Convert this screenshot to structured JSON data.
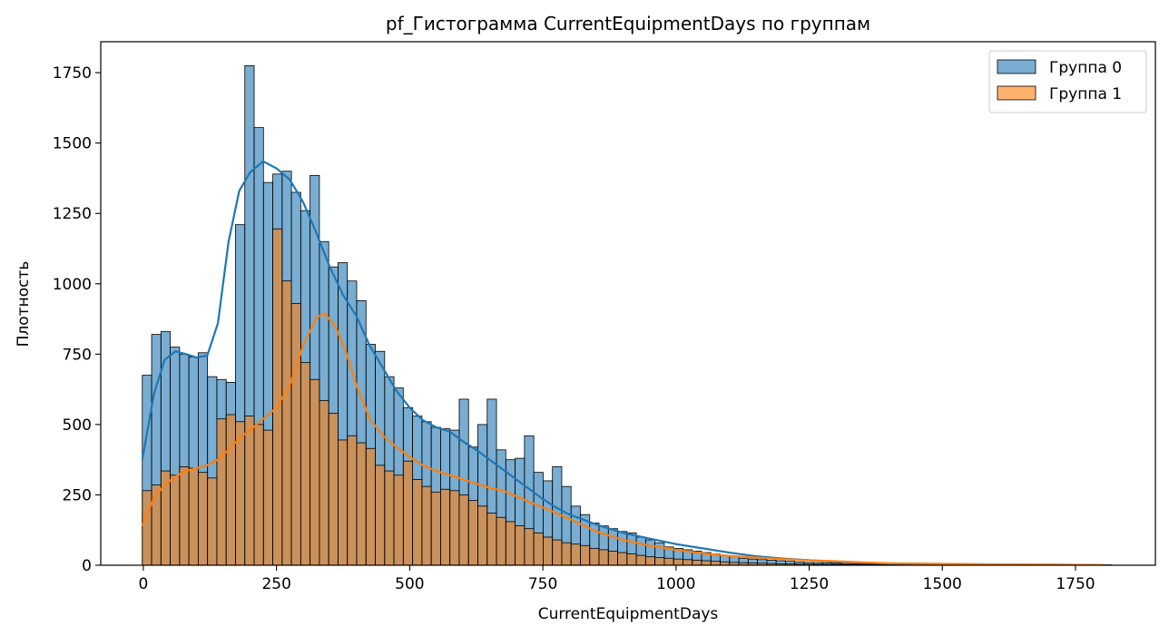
{
  "chart_data": {
    "type": "histogram",
    "title": "pf_Гистограмма CurrentEquipmentDays по группам",
    "xlabel": "CurrentEquipmentDays",
    "ylabel": "Плотность",
    "xlim": [
      -80,
      1900
    ],
    "ylim": [
      0,
      1860
    ],
    "xticks": [
      0,
      250,
      500,
      750,
      1000,
      1250,
      1500,
      1750
    ],
    "yticks": [
      0,
      250,
      500,
      750,
      1000,
      1250,
      1500,
      1750
    ],
    "bin_start": -2,
    "bin_width": 17.5,
    "legend_position": "top-right",
    "series": [
      {
        "name": "Группа 0",
        "color": "#1f77b4",
        "counts": [
          675,
          820,
          830,
          775,
          750,
          740,
          755,
          670,
          660,
          650,
          1210,
          1775,
          1555,
          1360,
          1390,
          1400,
          1325,
          1260,
          1385,
          1150,
          1060,
          1075,
          1010,
          940,
          785,
          760,
          670,
          630,
          560,
          530,
          510,
          490,
          485,
          480,
          590,
          420,
          500,
          590,
          410,
          375,
          380,
          460,
          330,
          300,
          350,
          280,
          210,
          180,
          150,
          140,
          130,
          120,
          115,
          100,
          90,
          80,
          65,
          60,
          55,
          50,
          45,
          40,
          35,
          30,
          25,
          22,
          20,
          18,
          16,
          14,
          12,
          10,
          9,
          8,
          7,
          6,
          5,
          5,
          4,
          4,
          3,
          3,
          3,
          2,
          2,
          2,
          2,
          2,
          2,
          2,
          2,
          2,
          2,
          1,
          1,
          1,
          1,
          1,
          1,
          1,
          1,
          1,
          1,
          1
        ],
        "kde_x": [
          -2,
          20,
          40,
          60,
          80,
          100,
          120,
          140,
          160,
          180,
          200,
          225,
          250,
          275,
          300,
          325,
          350,
          375,
          400,
          425,
          450,
          475,
          500,
          525,
          550,
          575,
          600,
          625,
          650,
          675,
          700,
          725,
          750,
          775,
          800,
          850,
          900,
          950,
          1000,
          1050,
          1100,
          1150,
          1200,
          1250,
          1300,
          1350,
          1400,
          1500,
          1600,
          1700,
          1800
        ],
        "kde_y": [
          375,
          610,
          730,
          760,
          750,
          738,
          745,
          860,
          1150,
          1330,
          1395,
          1435,
          1410,
          1370,
          1290,
          1180,
          1060,
          960,
          885,
          780,
          700,
          620,
          560,
          515,
          490,
          475,
          440,
          410,
          375,
          340,
          305,
          270,
          235,
          205,
          180,
          145,
          115,
          95,
          75,
          60,
          45,
          32,
          24,
          18,
          12,
          9,
          6,
          4,
          3,
          2,
          1
        ]
      },
      {
        "name": "Группа 1",
        "color": "#ff7f0e",
        "counts": [
          265,
          285,
          335,
          320,
          350,
          345,
          330,
          310,
          520,
          535,
          510,
          530,
          500,
          480,
          1195,
          1010,
          930,
          720,
          660,
          585,
          540,
          445,
          460,
          435,
          415,
          355,
          335,
          320,
          370,
          305,
          280,
          260,
          270,
          265,
          250,
          230,
          210,
          185,
          170,
          155,
          140,
          130,
          115,
          100,
          90,
          80,
          75,
          70,
          60,
          55,
          50,
          45,
          40,
          35,
          30,
          27,
          25,
          22,
          20,
          18,
          16,
          14,
          12,
          10,
          9,
          8,
          7,
          6,
          5,
          5,
          4,
          4,
          3,
          3,
          3,
          2,
          2,
          2,
          2,
          2,
          2,
          2,
          2,
          2,
          2,
          1,
          1,
          1,
          1,
          1,
          1,
          1,
          1,
          1,
          1,
          1,
          1,
          1,
          1,
          1,
          1,
          1,
          1,
          1
        ],
        "kde_x": [
          -2,
          20,
          40,
          60,
          80,
          100,
          120,
          140,
          160,
          180,
          200,
          225,
          250,
          275,
          300,
          325,
          340,
          360,
          380,
          400,
          425,
          450,
          475,
          500,
          525,
          550,
          575,
          600,
          625,
          650,
          675,
          700,
          725,
          750,
          775,
          800,
          850,
          900,
          950,
          1000,
          1050,
          1100,
          1150,
          1200,
          1250,
          1300,
          1350,
          1400,
          1500,
          1600,
          1700,
          1800
        ],
        "kde_y": [
          140,
          240,
          285,
          315,
          335,
          345,
          355,
          375,
          410,
          450,
          480,
          520,
          560,
          640,
          780,
          880,
          895,
          850,
          760,
          640,
          520,
          460,
          420,
          385,
          355,
          335,
          320,
          305,
          290,
          275,
          265,
          245,
          225,
          205,
          185,
          165,
          120,
          90,
          70,
          55,
          42,
          33,
          27,
          22,
          18,
          14,
          10,
          7,
          5,
          3,
          2,
          1
        ]
      }
    ]
  }
}
